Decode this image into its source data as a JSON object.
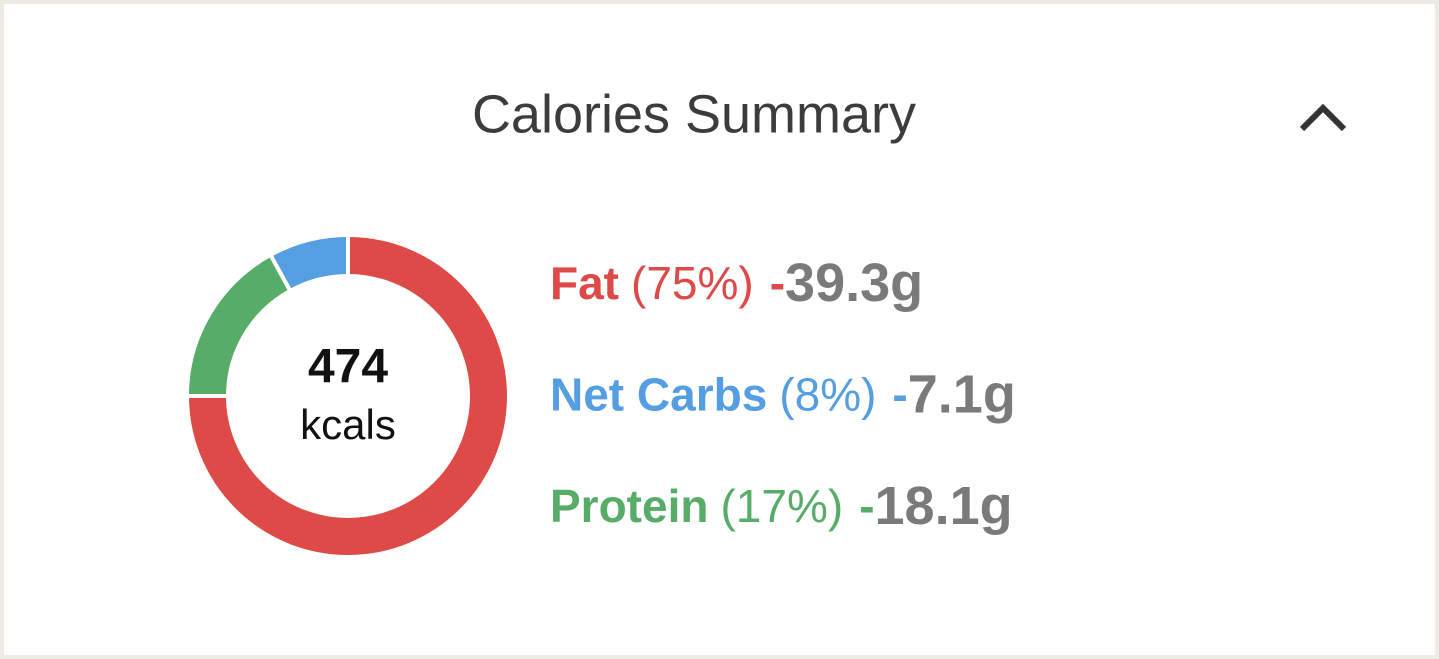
{
  "chart_data": {
    "type": "donut",
    "title": "Calories Summary",
    "total": 474,
    "total_unit": "kcals",
    "categories": [
      "Fat",
      "Net Carbs",
      "Protein"
    ],
    "values": [
      75,
      8,
      17
    ],
    "value_labels": [
      "(75%)",
      "(8%)",
      "(17%)"
    ],
    "separator": "-",
    "amounts": [
      "39.3g",
      "7.1g",
      "18.1g"
    ],
    "colors": [
      "#dd4a48",
      "#559ee2",
      "#57ad68"
    ]
  }
}
